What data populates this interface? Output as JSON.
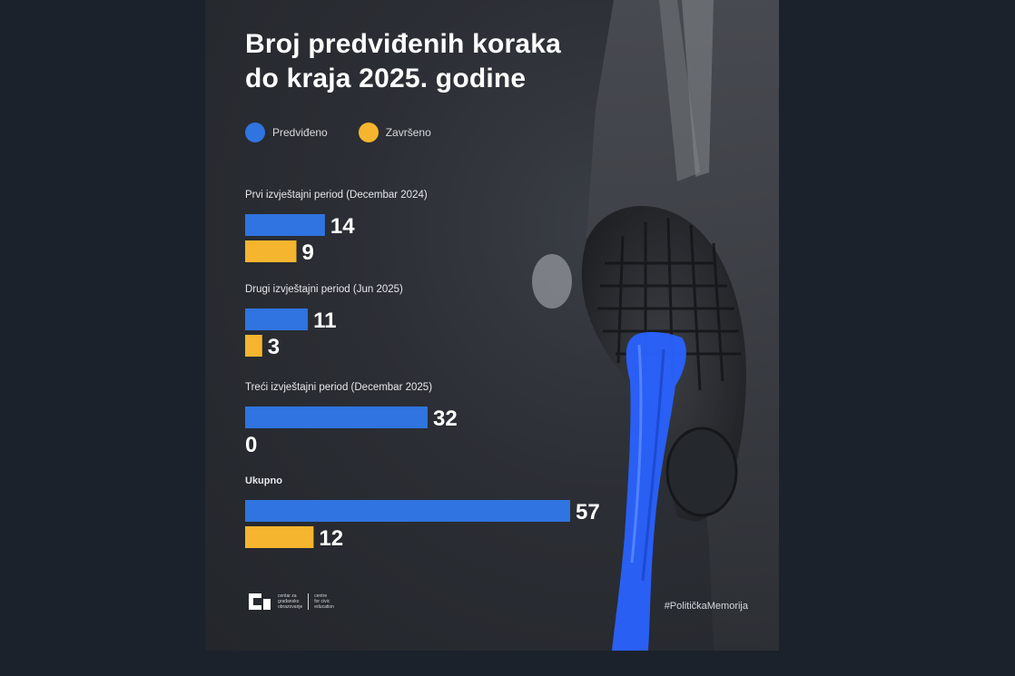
{
  "title_line1": "Broj predviđenih koraka",
  "title_line2": "do kraja 2025. godine",
  "legend": [
    {
      "label": "Predviđeno",
      "color": "#2f74e0"
    },
    {
      "label": "Završeno",
      "color": "#f5b52e"
    }
  ],
  "chart_data": {
    "type": "bar",
    "orientation": "horizontal",
    "categories": [
      "Prvi izvještajni period (Decembar 2024)",
      "Drugi izvještajni period (Jun 2025)",
      "Treći izvještajni period (Decembar 2025)",
      "Ukupno"
    ],
    "series": [
      {
        "name": "Predviđeno",
        "values": [
          14,
          11,
          32,
          57
        ],
        "color": "#2f74e0"
      },
      {
        "name": "Završeno",
        "values": [
          9,
          3,
          0,
          12
        ],
        "color": "#f5b52e"
      }
    ],
    "title": "Broj predviđenih koraka do kraja 2025. godine",
    "xlim": [
      0,
      57
    ],
    "grid": false,
    "legend_position": "top-left"
  },
  "brand": {
    "org_line1": "centar za",
    "org_line2": "građansko",
    "org_line3": "obrazovanje",
    "org_en_line1": "centre",
    "org_en_line2": "for civic",
    "org_en_line3": "education"
  },
  "hashtag": "#PolitičkaMemorija"
}
